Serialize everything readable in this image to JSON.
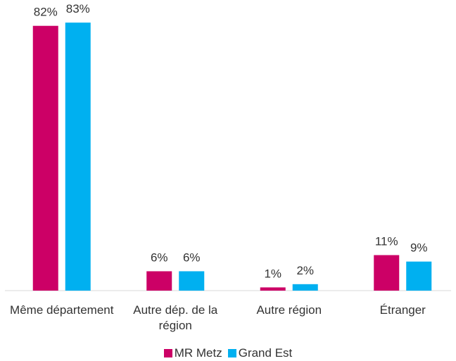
{
  "chart_data": {
    "type": "bar",
    "categories": [
      "Même département",
      "Autre dép. de la région",
      "Autre région",
      "Étranger"
    ],
    "series": [
      {
        "name": "MR Metz",
        "color": "#cc0066",
        "values": [
          82,
          6,
          1,
          11
        ],
        "value_labels": [
          "82%",
          "6%",
          "1%",
          "11%"
        ]
      },
      {
        "name": "Grand Est",
        "color": "#00b0f0",
        "values": [
          83,
          6,
          2,
          9
        ],
        "value_labels": [
          "83%",
          "6%",
          "2%",
          "9%"
        ]
      }
    ],
    "ylim": [
      0,
      90
    ],
    "legend": "bottom"
  }
}
